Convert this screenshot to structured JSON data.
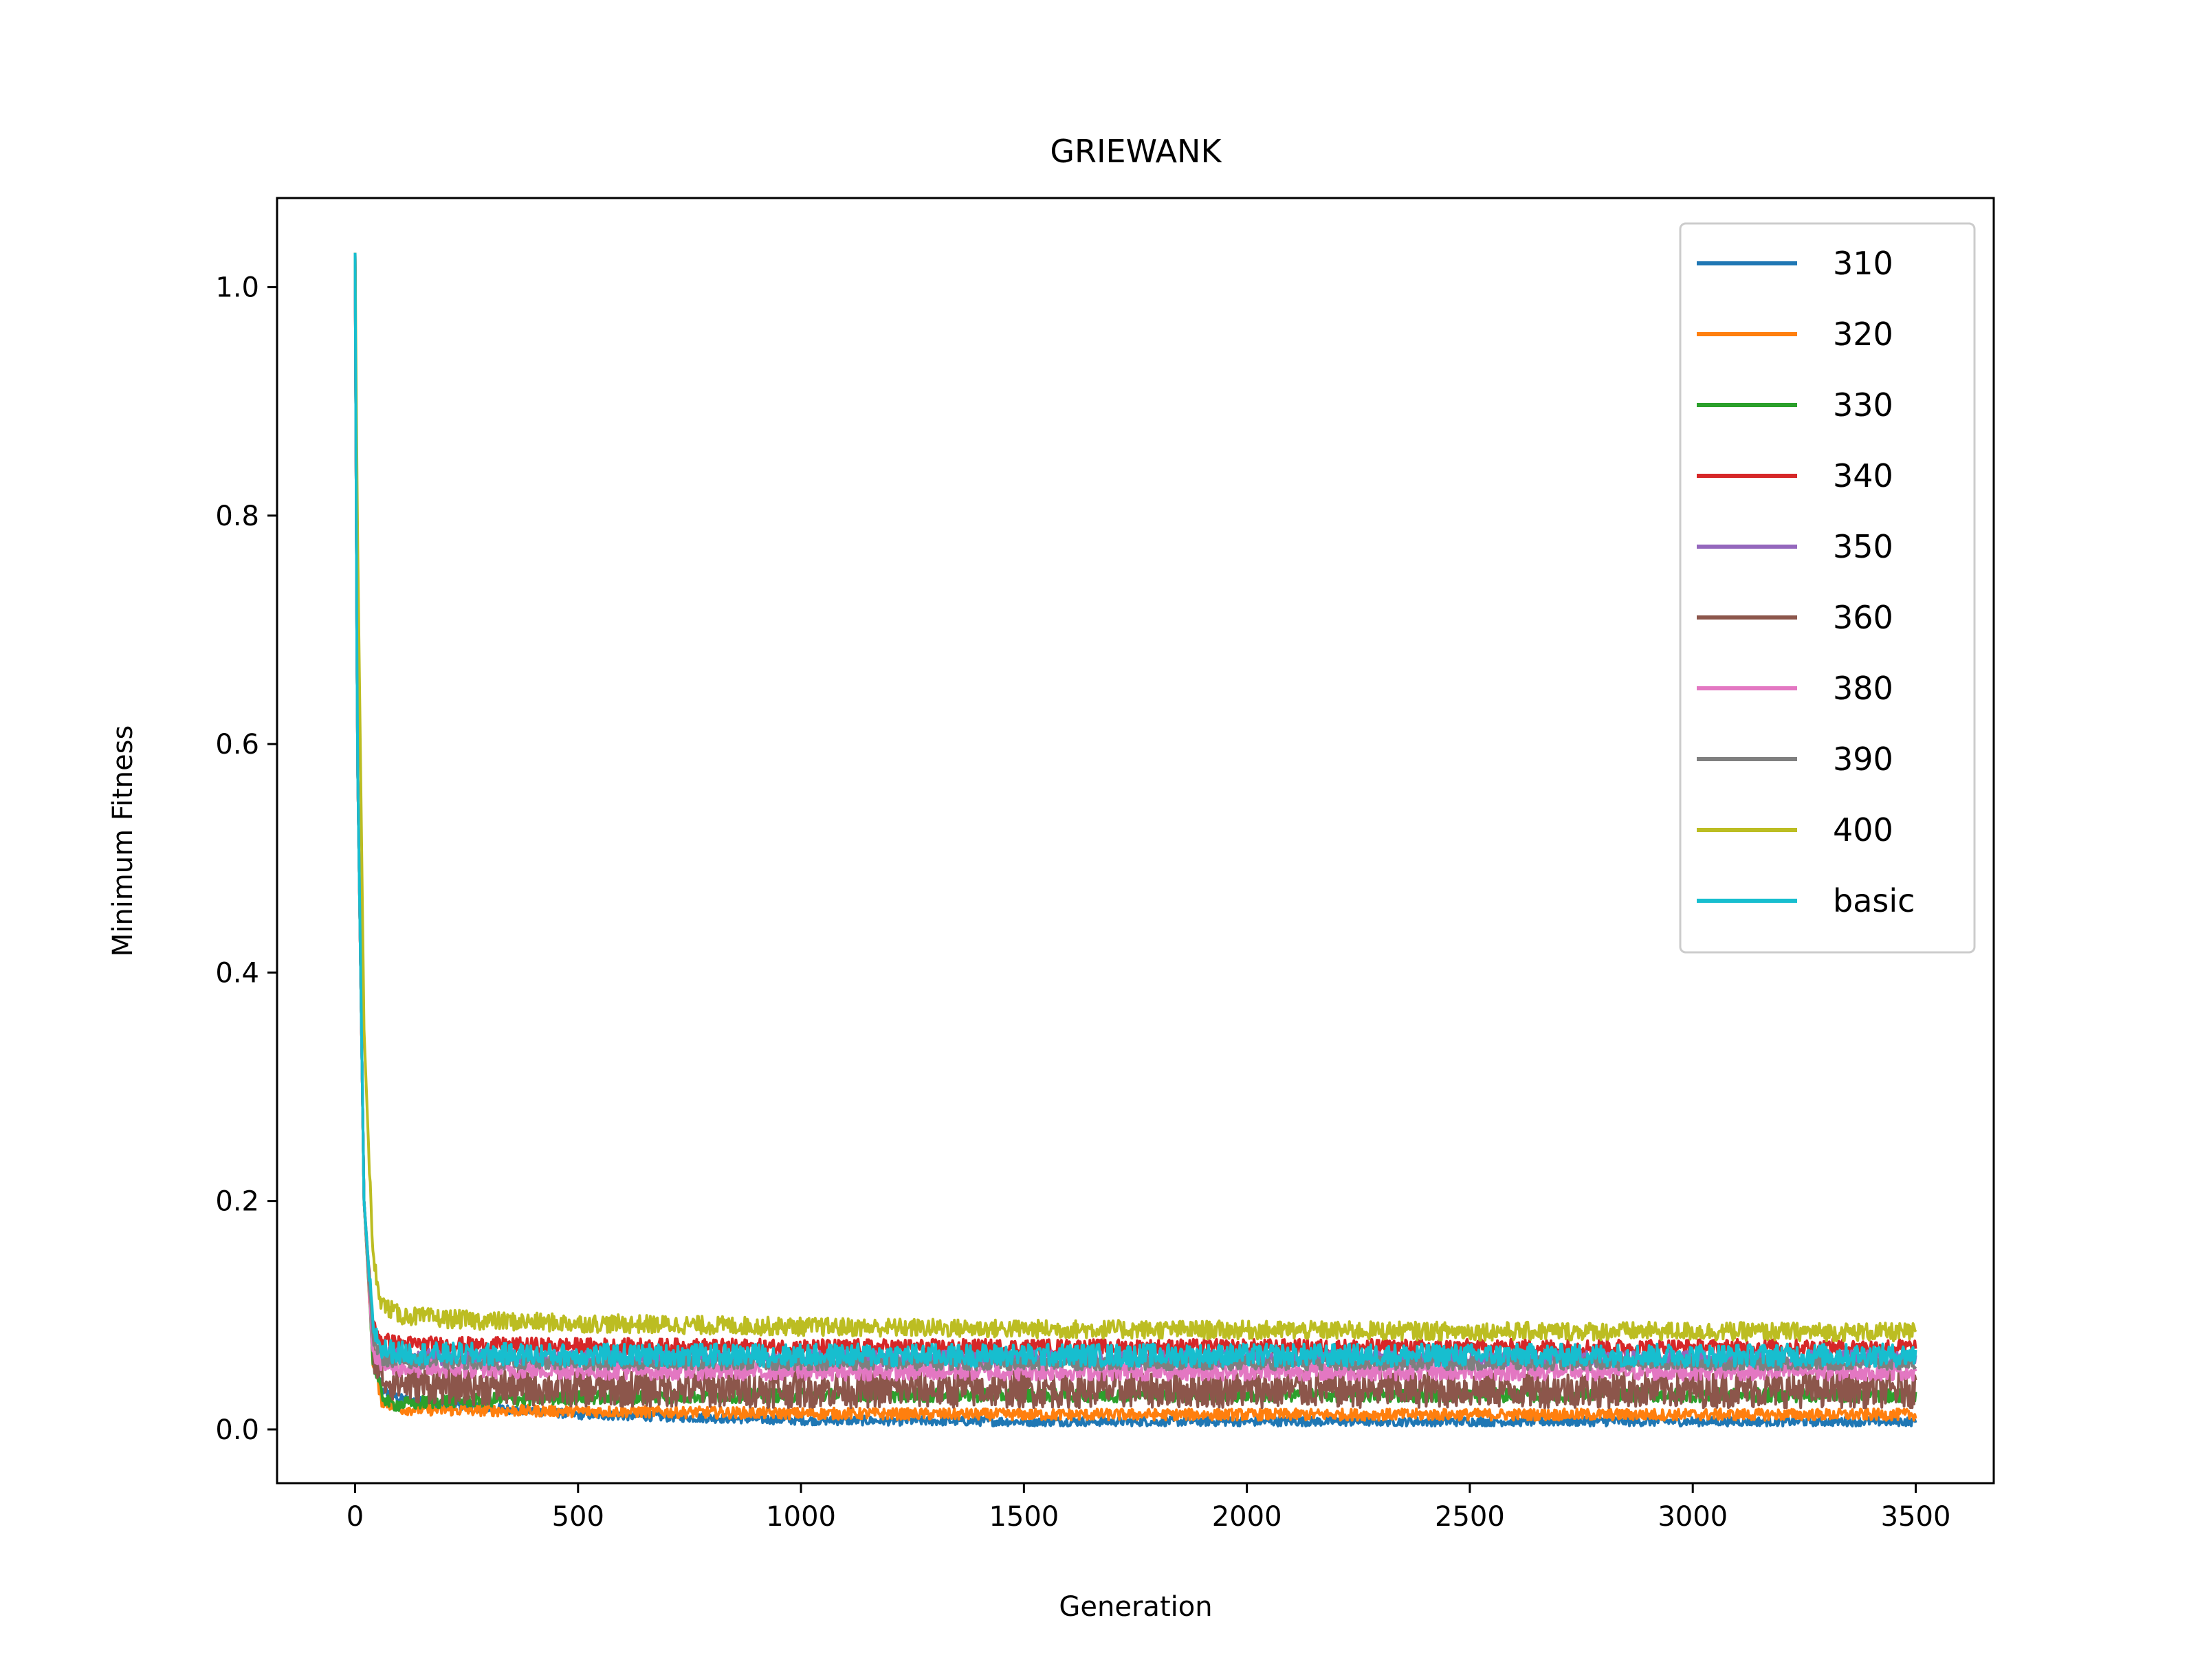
{
  "chart_data": {
    "type": "line",
    "title": "GRIEWANK",
    "xlabel": "Generation",
    "ylabel": "Minimum Fitness",
    "xlim": [
      -175,
      3675
    ],
    "ylim": [
      -0.047,
      1.078
    ],
    "xticks": [
      0,
      500,
      1000,
      1500,
      2000,
      2500,
      3000,
      3500
    ],
    "xtick_labels": [
      "0",
      "500",
      "1000",
      "1500",
      "2000",
      "2500",
      "3000",
      "3500"
    ],
    "yticks": [
      0.0,
      0.2,
      0.4,
      0.6,
      0.8,
      1.0
    ],
    "ytick_labels": [
      "0.0",
      "0.2",
      "0.4",
      "0.6",
      "0.8",
      "1.0"
    ],
    "grid": false,
    "legend": "top-right",
    "note_noise": "each series fluctuates around its plateau; band = [min,max] of fluctuation",
    "series": [
      {
        "name": "310",
        "color": "#1f77b4",
        "x": [
          0,
          5,
          20,
          40,
          60,
          100,
          200,
          500,
          1000,
          1500,
          2000,
          2500,
          3000,
          3500
        ],
        "y": [
          1.03,
          0.6,
          0.2,
          0.07,
          0.035,
          0.027,
          0.022,
          0.013,
          0.008,
          0.007,
          0.007,
          0.007,
          0.007,
          0.007
        ],
        "band": 0.004
      },
      {
        "name": "320",
        "color": "#ff7f0e",
        "x": [
          0,
          5,
          20,
          40,
          60,
          100,
          200,
          500,
          1000,
          1500,
          2000,
          2500,
          3000,
          3500
        ],
        "y": [
          1.03,
          0.6,
          0.2,
          0.06,
          0.025,
          0.018,
          0.017,
          0.016,
          0.014,
          0.013,
          0.013,
          0.013,
          0.013,
          0.013
        ],
        "band": 0.005
      },
      {
        "name": "330",
        "color": "#2ca02c",
        "x": [
          0,
          5,
          20,
          40,
          60,
          80,
          100,
          200,
          500,
          1000,
          1500,
          2000,
          2500,
          3000,
          3500
        ],
        "y": [
          1.03,
          0.6,
          0.2,
          0.06,
          0.03,
          0.022,
          0.022,
          0.025,
          0.028,
          0.03,
          0.03,
          0.03,
          0.03,
          0.03,
          0.03
        ],
        "band": 0.006
      },
      {
        "name": "340",
        "color": "#d62728",
        "x": [
          0,
          5,
          20,
          40,
          60,
          100,
          200,
          500,
          1000,
          1500,
          2000,
          2500,
          3000,
          3500
        ],
        "y": [
          1.03,
          0.6,
          0.2,
          0.09,
          0.078,
          0.075,
          0.074,
          0.073,
          0.072,
          0.072,
          0.072,
          0.072,
          0.072,
          0.072
        ],
        "band": 0.007
      },
      {
        "name": "350",
        "color": "#9467bd",
        "x": [
          0,
          5,
          20,
          40,
          60,
          100,
          200,
          500,
          1000,
          1500,
          2000,
          2500,
          3000,
          3500
        ],
        "y": [
          1.03,
          0.6,
          0.2,
          0.08,
          0.066,
          0.064,
          0.063,
          0.062,
          0.062,
          0.062,
          0.062,
          0.062,
          0.062,
          0.062
        ],
        "band": 0.007
      },
      {
        "name": "360",
        "color": "#8c564b",
        "x": [
          0,
          5,
          20,
          40,
          60,
          100,
          200,
          500,
          1000,
          1500,
          2000,
          2500,
          3000,
          3500
        ],
        "y": [
          1.03,
          0.6,
          0.2,
          0.07,
          0.045,
          0.04,
          0.038,
          0.036,
          0.035,
          0.035,
          0.035,
          0.035,
          0.035,
          0.035
        ],
        "band": 0.016
      },
      {
        "name": "380",
        "color": "#e377c2",
        "x": [
          0,
          5,
          20,
          40,
          60,
          100,
          200,
          500,
          1000,
          1500,
          2000,
          2500,
          3000,
          3500
        ],
        "y": [
          1.03,
          0.6,
          0.2,
          0.07,
          0.056,
          0.054,
          0.053,
          0.052,
          0.051,
          0.051,
          0.051,
          0.051,
          0.051,
          0.051
        ],
        "band": 0.008
      },
      {
        "name": "390",
        "color": "#7f7f7f",
        "x": [
          0,
          5,
          20,
          40,
          60,
          100,
          200,
          500,
          1000,
          1500,
          2000,
          2500,
          3000,
          3500
        ],
        "y": [
          1.03,
          0.6,
          0.2,
          0.08,
          0.062,
          0.06,
          0.059,
          0.058,
          0.058,
          0.058,
          0.058,
          0.058,
          0.058,
          0.058
        ],
        "band": 0.006
      },
      {
        "name": "400",
        "color": "#bcbd22",
        "x": [
          0,
          5,
          20,
          40,
          60,
          80,
          100,
          200,
          300,
          500,
          1000,
          1500,
          2000,
          2500,
          3000,
          3500
        ],
        "y": [
          1.03,
          0.8,
          0.35,
          0.15,
          0.11,
          0.105,
          0.1,
          0.097,
          0.095,
          0.093,
          0.09,
          0.088,
          0.087,
          0.086,
          0.086,
          0.085
        ],
        "band": 0.008
      },
      {
        "name": "basic",
        "color": "#17becf",
        "x": [
          0,
          5,
          20,
          40,
          60,
          100,
          200,
          500,
          1000,
          1500,
          2000,
          2500,
          3000,
          3500
        ],
        "y": [
          1.03,
          0.6,
          0.2,
          0.09,
          0.07,
          0.067,
          0.066,
          0.065,
          0.065,
          0.065,
          0.065,
          0.065,
          0.065,
          0.065
        ],
        "band": 0.01
      }
    ]
  }
}
